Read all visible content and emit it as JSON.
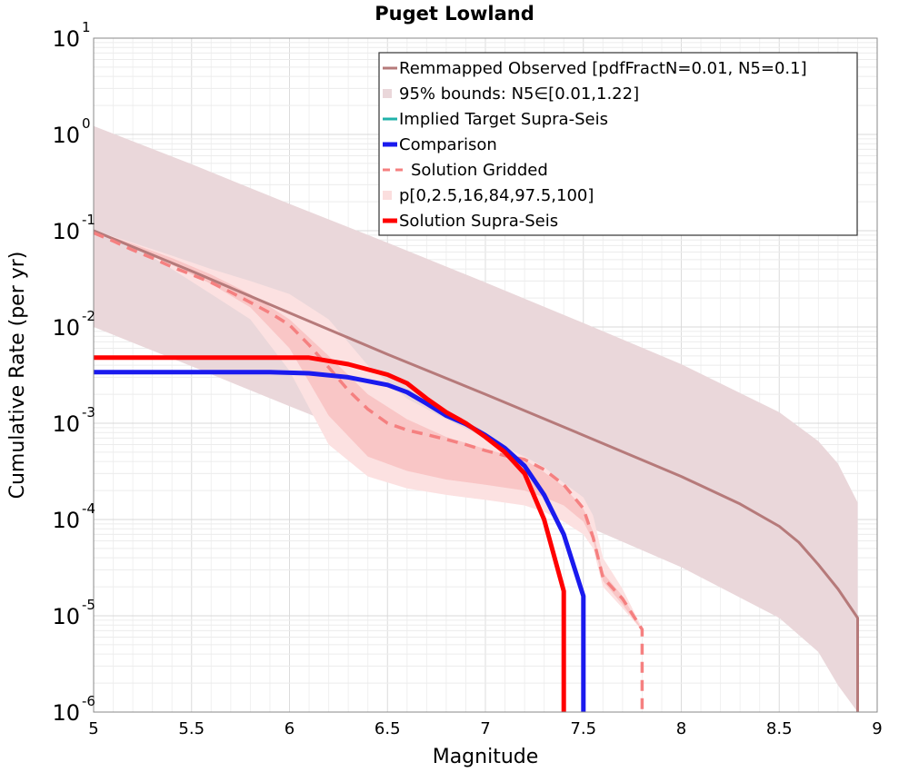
{
  "chart_data": {
    "type": "line",
    "title": "Puget Lowland",
    "xlabel": "Magnitude",
    "ylabel": "Cumulative Rate (per yr)",
    "xlim": [
      5,
      9
    ],
    "ylim": [
      1e-06,
      10
    ],
    "yscale": "log",
    "grid": true,
    "legend_position": "top-right",
    "x_ticks": [
      5,
      5.5,
      6,
      6.5,
      7,
      7.5,
      8,
      8.5,
      9
    ],
    "x_tick_labels": [
      "5",
      "5.5",
      "6",
      "6.5",
      "7",
      "7.5",
      "8",
      "8.5",
      "9"
    ],
    "y_ticks": [
      {
        "value": 1e-06,
        "base": "10",
        "exp": "-6"
      },
      {
        "value": 1e-05,
        "base": "10",
        "exp": "-5"
      },
      {
        "value": 0.0001,
        "base": "10",
        "exp": "-4"
      },
      {
        "value": 0.001,
        "base": "10",
        "exp": "-3"
      },
      {
        "value": 0.01,
        "base": "10",
        "exp": "-2"
      },
      {
        "value": 0.1,
        "base": "10",
        "exp": "-1"
      },
      {
        "value": 1,
        "base": "10",
        "exp": "0"
      },
      {
        "value": 10,
        "base": "10",
        "exp": "1"
      }
    ],
    "legend": [
      {
        "label": "Remmapped Observed [pdfFractN=0.01, N5=0.1]",
        "color": "#b67a7a",
        "kind": "line"
      },
      {
        "label": "95% bounds: N5∈[0.01,1.22]",
        "color": "#ead7da",
        "kind": "band"
      },
      {
        "label": "Implied Target Supra-Seis",
        "color": "#20b2aa",
        "kind": "line"
      },
      {
        "label": "Comparison",
        "color": "#1a1aee",
        "kind": "thick"
      },
      {
        "label": "Solution Gridded",
        "color": "#f58080",
        "kind": "dash"
      },
      {
        "label": "p[0,2.5,16,84,97.5,100]",
        "color": "#fbdede",
        "kind": "band"
      },
      {
        "label": "Solution Supra-Seis",
        "color": "#ff0000",
        "kind": "thick"
      }
    ],
    "observed_band": {
      "color": "#ead7da",
      "x": [
        5.0,
        5.5,
        6.0,
        6.5,
        7.0,
        7.5,
        8.0,
        8.5,
        8.7,
        8.8,
        8.9,
        8.9
      ],
      "upper": [
        1.22,
        0.49,
        0.19,
        0.075,
        0.029,
        0.011,
        0.0041,
        0.0013,
        0.00065,
        0.00038,
        0.00015,
        1e-06
      ],
      "lower": [
        0.01,
        0.0039,
        0.0015,
        0.00059,
        0.00023,
        8.8e-05,
        3.2e-05,
        9.5e-06,
        4.2e-06,
        1.9e-06,
        1e-06,
        1e-06
      ]
    },
    "gridded_band_outer": {
      "color": "#fce1e1",
      "x": [
        5.0,
        5.2,
        5.4,
        5.6,
        5.8,
        6.0,
        6.2,
        6.4,
        6.6,
        6.8,
        7.0,
        7.2,
        7.3,
        7.4,
        7.5,
        7.55,
        7.6,
        7.7,
        7.8
      ],
      "upper": [
        0.1,
        0.075,
        0.055,
        0.04,
        0.03,
        0.022,
        0.012,
        0.004,
        0.0018,
        0.0011,
        0.0007,
        0.00045,
        0.00035,
        0.00024,
        0.00017,
        0.00011,
        4e-05,
        1.9e-05,
        7.5e-06
      ],
      "lower": [
        0.1,
        0.07,
        0.04,
        0.022,
        0.012,
        0.0035,
        0.0006,
        0.00028,
        0.00021,
        0.00018,
        0.00016,
        0.00014,
        0.00012,
        9.5e-05,
        7e-05,
        5e-05,
        2e-05,
        1.2e-05,
        7e-06
      ]
    },
    "gridded_band_inner": {
      "color": "#f9c6c6",
      "x": [
        5.0,
        5.2,
        5.4,
        5.6,
        5.8,
        6.0,
        6.2,
        6.4,
        6.6,
        6.8,
        7.0,
        7.2,
        7.3,
        7.4,
        7.5,
        7.55,
        7.6,
        7.7,
        7.8
      ],
      "upper": [
        0.1,
        0.073,
        0.052,
        0.035,
        0.022,
        0.012,
        0.005,
        0.002,
        0.0011,
        0.00072,
        0.00054,
        0.00042,
        0.00031,
        0.00022,
        0.00013,
        7.5e-05,
        2.8e-05,
        1.6e-05,
        7.2e-06
      ],
      "lower": [
        0.1,
        0.071,
        0.044,
        0.028,
        0.016,
        0.006,
        0.0012,
        0.00045,
        0.00032,
        0.00026,
        0.00023,
        0.0002,
        0.00017,
        0.00014,
        9.5e-05,
        6e-05,
        2.3e-05,
        1.3e-05,
        7e-06
      ]
    },
    "series": [
      {
        "name": "Remmapped Observed [pdfFractN=0.01, N5=0.1]",
        "color": "#b67a7a",
        "width": 3,
        "dash": "",
        "x": [
          5.0,
          5.5,
          6.0,
          6.5,
          7.0,
          7.5,
          8.0,
          8.3,
          8.5,
          8.6,
          8.7,
          8.8,
          8.9,
          8.9
        ],
        "y": [
          0.1,
          0.038,
          0.014,
          0.0052,
          0.002,
          0.00075,
          0.00028,
          0.000145,
          8.5e-05,
          5.8e-05,
          3.4e-05,
          1.9e-05,
          9.5e-06,
          1e-06
        ]
      },
      {
        "name": "Solution Gridded",
        "color": "#f58080",
        "width": 3.5,
        "dash": "12,8",
        "x": [
          5.0,
          5.1,
          5.2,
          5.3,
          5.4,
          5.5,
          5.6,
          5.7,
          5.8,
          5.9,
          6.0,
          6.1,
          6.2,
          6.3,
          6.4,
          6.5,
          6.6,
          6.7,
          6.8,
          6.9,
          7.0,
          7.1,
          7.2,
          7.3,
          7.4,
          7.5,
          7.55,
          7.6,
          7.7,
          7.8,
          7.8
        ],
        "y": [
          0.095,
          0.078,
          0.063,
          0.052,
          0.042,
          0.035,
          0.029,
          0.023,
          0.018,
          0.014,
          0.0105,
          0.0065,
          0.0038,
          0.0022,
          0.0014,
          0.001,
          0.00085,
          0.00076,
          0.00068,
          0.0006,
          0.00052,
          0.00046,
          0.00042,
          0.00033,
          0.00023,
          0.00013,
          6.5e-05,
          2.5e-05,
          1.5e-05,
          7.2e-06,
          1e-06
        ]
      },
      {
        "name": "Comparison",
        "color": "#1a1aee",
        "width": 5,
        "dash": "",
        "x": [
          5.0,
          5.5,
          5.9,
          6.1,
          6.3,
          6.5,
          6.6,
          6.7,
          6.8,
          6.9,
          7.0,
          7.1,
          7.2,
          7.3,
          7.4,
          7.5,
          7.5
        ],
        "y": [
          0.0034,
          0.0034,
          0.0034,
          0.0033,
          0.003,
          0.0025,
          0.0021,
          0.0016,
          0.0012,
          0.00098,
          0.00075,
          0.00055,
          0.00036,
          0.00018,
          7e-05,
          1.6e-05,
          1e-06
        ]
      },
      {
        "name": "Solution Supra-Seis",
        "color": "#ff0000",
        "width": 5,
        "dash": "",
        "x": [
          5.0,
          5.5,
          6.0,
          6.1,
          6.3,
          6.5,
          6.6,
          6.7,
          6.8,
          6.9,
          7.0,
          7.1,
          7.2,
          7.3,
          7.4,
          7.4
        ],
        "y": [
          0.0048,
          0.0048,
          0.0048,
          0.0048,
          0.0041,
          0.0032,
          0.0026,
          0.0018,
          0.0013,
          0.001,
          0.00072,
          0.0005,
          0.0003,
          0.0001,
          1.8e-05,
          1e-06
        ]
      }
    ]
  }
}
